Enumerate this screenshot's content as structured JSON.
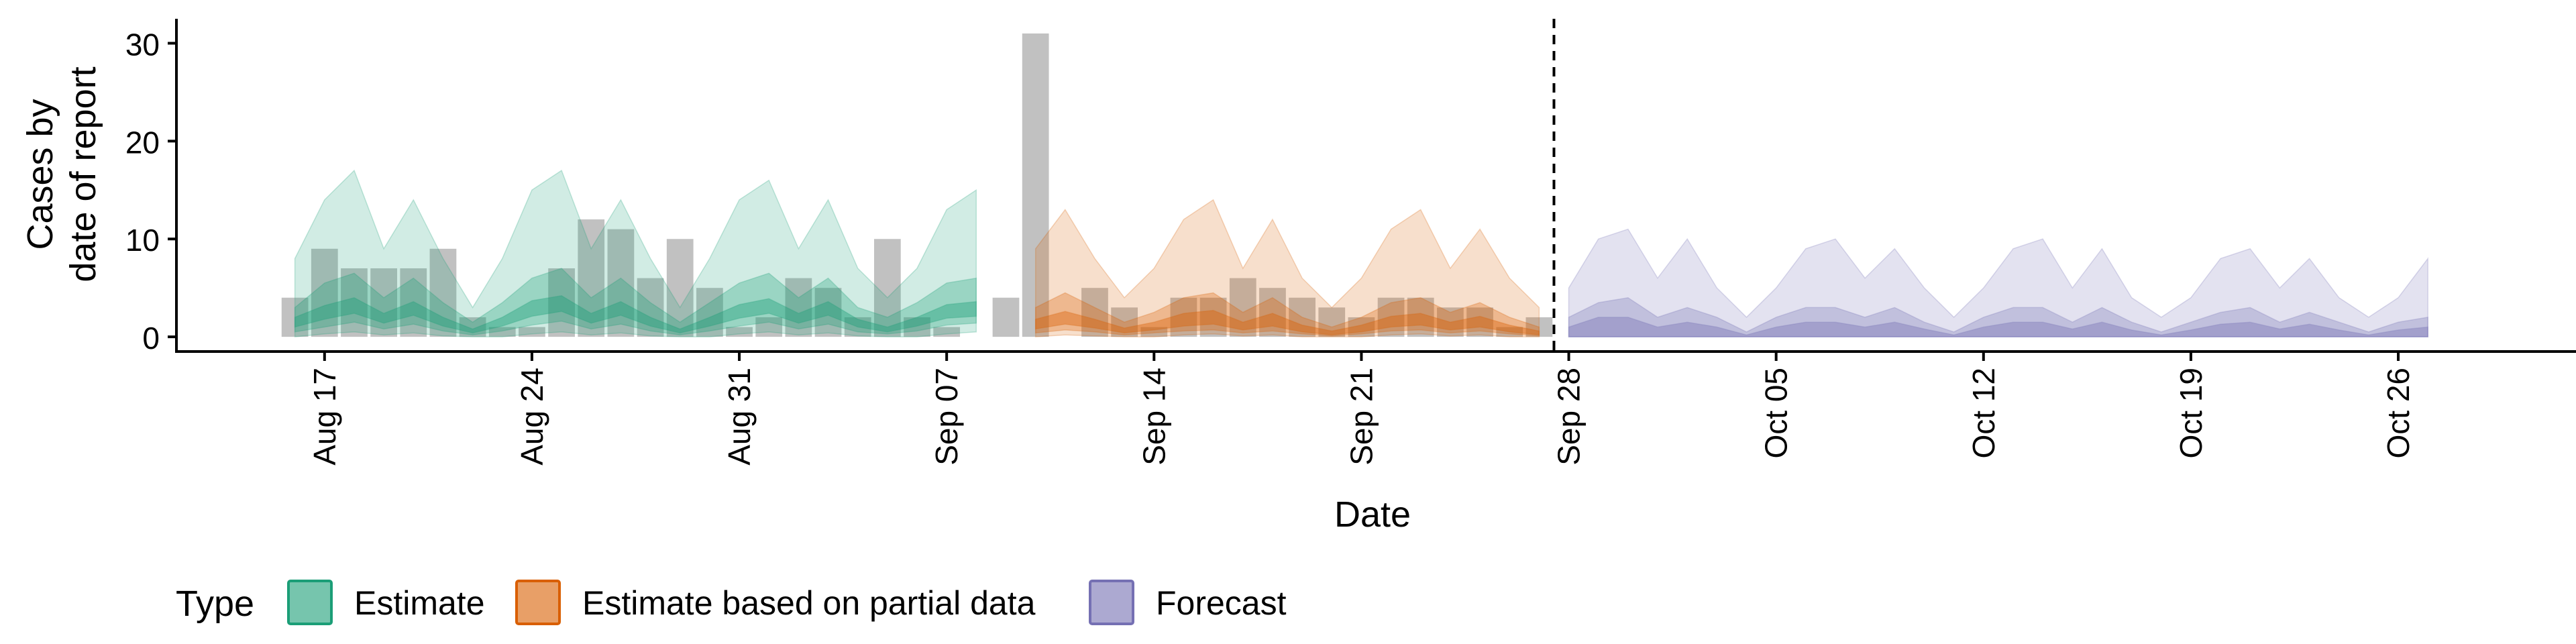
{
  "chart_data": {
    "type": "area",
    "xlabel": "Date",
    "ylabel_lines": [
      "Cases by",
      "date of report"
    ],
    "x_range": [
      "2020-08-12",
      "2020-11-01"
    ],
    "ylim": [
      -1.5,
      32.5
    ],
    "y_ticks": [
      0,
      10,
      20,
      30
    ],
    "x_ticks": [
      {
        "date": "2020-08-17",
        "label": "Aug 17"
      },
      {
        "date": "2020-08-24",
        "label": "Aug 24"
      },
      {
        "date": "2020-08-31",
        "label": "Aug 31"
      },
      {
        "date": "2020-09-07",
        "label": "Sep 07"
      },
      {
        "date": "2020-09-14",
        "label": "Sep 14"
      },
      {
        "date": "2020-09-21",
        "label": "Sep 21"
      },
      {
        "date": "2020-09-28",
        "label": "Sep 28"
      },
      {
        "date": "2020-10-05",
        "label": "Oct 05"
      },
      {
        "date": "2020-10-12",
        "label": "Oct 12"
      },
      {
        "date": "2020-10-19",
        "label": "Oct 19"
      },
      {
        "date": "2020-10-26",
        "label": "Oct 26"
      }
    ],
    "forecast_date": "2020-09-27",
    "bar_color": "#bebebe",
    "reported_cases": {
      "start": "2020-08-16",
      "values": [
        4,
        9,
        7,
        7,
        7,
        9,
        2,
        1,
        1,
        7,
        12,
        11,
        6,
        10,
        5,
        1,
        2,
        6,
        5,
        2,
        10,
        2,
        1,
        0,
        4,
        31,
        0,
        5,
        3,
        1,
        4,
        4,
        6,
        5,
        4,
        3,
        2,
        4,
        4,
        3,
        3,
        1,
        2
      ]
    },
    "series": [
      {
        "name": "Estimate",
        "fill": "#1b9e77",
        "start": "2020-08-16",
        "upper90": [
          8,
          14,
          17,
          9,
          14,
          8,
          3,
          8,
          15,
          17,
          9,
          14,
          8,
          3,
          8,
          14,
          16,
          9,
          14,
          7,
          4,
          7,
          13,
          15
        ],
        "lower90": [
          0,
          0.3,
          0.5,
          0.2,
          0.4,
          0.1,
          0,
          0,
          0.3,
          0.5,
          0.2,
          0.4,
          0.1,
          0,
          0,
          0.3,
          0.5,
          0.2,
          0.4,
          0.1,
          0,
          0,
          0.3,
          0.5
        ],
        "upper50": [
          3,
          5.5,
          6.5,
          4,
          6,
          3.5,
          1.5,
          3.5,
          6,
          7,
          4,
          6,
          3.5,
          1.5,
          3.5,
          5.5,
          6.5,
          4,
          6,
          3,
          2,
          3.5,
          5.5,
          6
        ],
        "lower50": [
          0.5,
          1,
          1.5,
          0.8,
          1.3,
          0.6,
          0.2,
          0.6,
          1.2,
          1.6,
          0.8,
          1.3,
          0.6,
          0.2,
          0.6,
          1.1,
          1.5,
          0.8,
          1.3,
          0.5,
          0.3,
          0.6,
          1.2,
          1.4
        ],
        "upper20": [
          2,
          3.2,
          4,
          2.4,
          3.6,
          2,
          0.8,
          2,
          3.7,
          4.2,
          2.4,
          3.6,
          2,
          0.8,
          2,
          3.3,
          3.9,
          2.4,
          3.6,
          1.8,
          1,
          2,
          3.3,
          3.6
        ],
        "lower20": [
          1,
          1.8,
          2.4,
          1.4,
          2.2,
          1.1,
          0.4,
          1.1,
          2.1,
          2.6,
          1.4,
          2.2,
          1.1,
          0.4,
          1.1,
          1.9,
          2.4,
          1.4,
          2.2,
          1,
          0.5,
          1.1,
          1.9,
          2.1
        ]
      },
      {
        "name": "Estimate based on partial data",
        "fill": "#d95f02",
        "start": "2020-09-10",
        "upper90": [
          9,
          13,
          8,
          4,
          7,
          12,
          14,
          7,
          12,
          6,
          3,
          6,
          11,
          13,
          7,
          11,
          6,
          3
        ],
        "lower90": [
          0,
          0.2,
          0.1,
          0,
          0,
          0.2,
          0.3,
          0.1,
          0.2,
          0,
          0,
          0,
          0.2,
          0.3,
          0.1,
          0.2,
          0,
          0
        ],
        "upper50": [
          3,
          4.5,
          3,
          1.5,
          2.5,
          4,
          4.5,
          2.5,
          4,
          2,
          1,
          2,
          3.5,
          4,
          2.5,
          3.5,
          2,
          1
        ],
        "lower50": [
          0.4,
          0.7,
          0.5,
          0.2,
          0.4,
          0.6,
          0.7,
          0.4,
          0.6,
          0.3,
          0.1,
          0.3,
          0.6,
          0.7,
          0.4,
          0.6,
          0.3,
          0.1
        ],
        "upper20": [
          1.8,
          2.6,
          1.8,
          0.9,
          1.5,
          2.4,
          2.7,
          1.5,
          2.4,
          1.2,
          0.6,
          1.2,
          2.1,
          2.4,
          1.5,
          2.1,
          1.2,
          0.6
        ],
        "lower20": [
          0.8,
          1.3,
          0.9,
          0.4,
          0.7,
          1.1,
          1.3,
          0.7,
          1.1,
          0.5,
          0.2,
          0.5,
          1,
          1.2,
          0.7,
          1,
          0.5,
          0.2
        ]
      },
      {
        "name": "Forecast",
        "fill": "#7570b3",
        "start": "2020-09-28",
        "upper90": [
          5,
          10,
          11,
          6,
          10,
          5,
          2,
          5,
          9,
          10,
          6,
          9,
          5,
          2,
          5,
          9,
          10,
          5,
          9,
          4,
          2,
          4,
          8,
          9,
          5,
          8,
          4,
          2,
          4,
          8
        ],
        "lower90": [
          0,
          0,
          0,
          0,
          0,
          0,
          0,
          0,
          0,
          0,
          0,
          0,
          0,
          0,
          0,
          0,
          0,
          0,
          0,
          0,
          0,
          0,
          0,
          0,
          0,
          0,
          0,
          0,
          0,
          0
        ],
        "upper50": [
          2,
          3.5,
          4,
          2,
          3,
          2,
          0.5,
          2,
          3,
          3,
          2,
          3,
          1.5,
          0.5,
          2,
          3,
          3,
          1.5,
          3,
          1.5,
          0.5,
          1.5,
          2.5,
          3,
          1.5,
          2.5,
          1.5,
          0.5,
          1.5,
          2
        ],
        "lower50": [
          0,
          0,
          0,
          0,
          0,
          0,
          0,
          0,
          0,
          0,
          0,
          0,
          0,
          0,
          0,
          0,
          0,
          0,
          0,
          0,
          0,
          0,
          0,
          0,
          0,
          0,
          0,
          0,
          0,
          0
        ],
        "upper20": [
          1,
          2,
          2,
          1,
          1.5,
          1,
          0.2,
          1,
          1.5,
          1.5,
          1,
          1.5,
          0.8,
          0.2,
          1,
          1.5,
          1.5,
          0.8,
          1.5,
          0.7,
          0.2,
          0.7,
          1.3,
          1.5,
          0.8,
          1.3,
          0.7,
          0.2,
          0.7,
          1
        ],
        "lower20": [
          0,
          0,
          0,
          0,
          0,
          0,
          0,
          0,
          0,
          0,
          0,
          0,
          0,
          0,
          0,
          0,
          0,
          0,
          0,
          0,
          0,
          0,
          0,
          0,
          0,
          0,
          0,
          0,
          0,
          0
        ]
      }
    ],
    "legend": {
      "title": "Type",
      "position": "bottom",
      "items": [
        "Estimate",
        "Estimate based on partial data",
        "Forecast"
      ]
    }
  }
}
